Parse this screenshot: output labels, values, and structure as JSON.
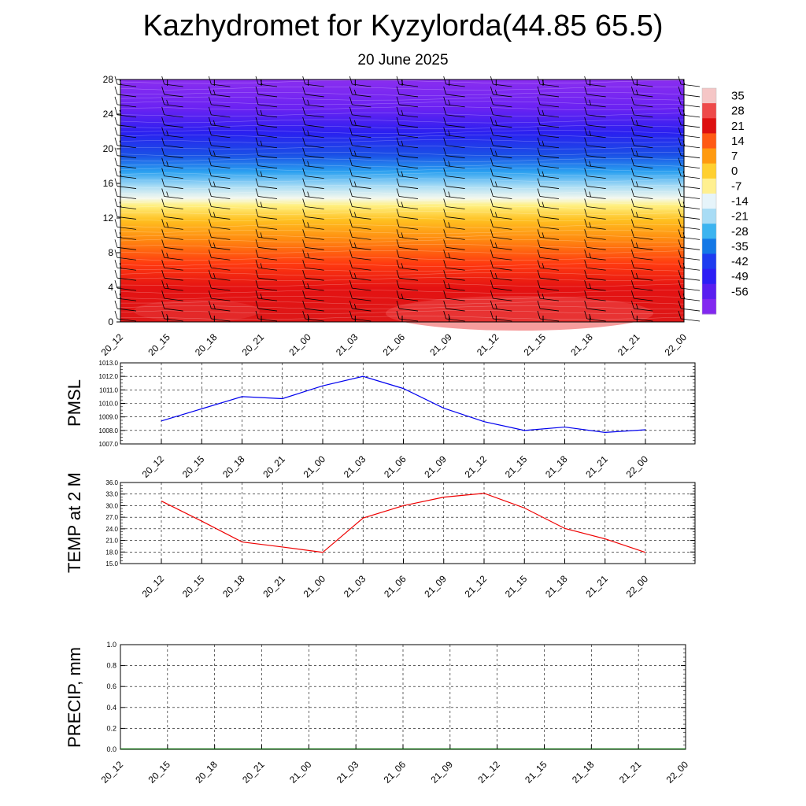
{
  "page": {
    "title": "Kazhydromet for Kyzylorda(44.85 65.5)",
    "subtitle": "20 June 2025"
  },
  "chart_data": [
    {
      "type": "heatmap",
      "id": "cross-section",
      "xlabel": "",
      "ylabel": "",
      "x_ticks": [
        "20_12",
        "20_15",
        "20_18",
        "20_21",
        "21_00",
        "21_03",
        "21_06",
        "21_09",
        "21_12",
        "21_15",
        "21_18",
        "21_21",
        "22_00"
      ],
      "y_ticks": [
        0,
        4,
        8,
        12,
        16,
        20,
        24,
        28
      ],
      "ylim": [
        0,
        28
      ],
      "color_scale_stops": [
        {
          "value": 35,
          "color": "#f5c6c6"
        },
        {
          "value": 28,
          "color": "#ee4a4a"
        },
        {
          "value": 21,
          "color": "#dd1010"
        },
        {
          "value": 14,
          "color": "#ff5a14"
        },
        {
          "value": 7,
          "color": "#ff9a10"
        },
        {
          "value": 0,
          "color": "#ffd030"
        },
        {
          "value": -7,
          "color": "#fff090"
        },
        {
          "value": -14,
          "color": "#e6f4fa"
        },
        {
          "value": -21,
          "color": "#a8dcf5"
        },
        {
          "value": -28,
          "color": "#3cb4f0"
        },
        {
          "value": -35,
          "color": "#1478e6"
        },
        {
          "value": -42,
          "color": "#1e3cf0"
        },
        {
          "value": -49,
          "color": "#2d1ef5"
        },
        {
          "value": -56,
          "color": "#5a1ef0"
        },
        {
          "value": -63,
          "color": "#8228f0"
        }
      ],
      "colorbar_labels": [
        "35",
        "28",
        "21",
        "14",
        "7",
        "0",
        "-7",
        "-14",
        "-21",
        "-28",
        "-35",
        "-42",
        "-49",
        "-56"
      ],
      "wind_barbs": true
    },
    {
      "type": "line",
      "id": "pmsl",
      "ylabel": "PMSL",
      "x": [
        "20_12",
        "20_15",
        "20_18",
        "20_21",
        "21_00",
        "21_03",
        "21_06",
        "21_09",
        "21_12",
        "21_15",
        "21_18",
        "21_21",
        "22_00"
      ],
      "series": [
        {
          "values": [
            1008.7,
            1009.6,
            1010.5,
            1010.35,
            1011.3,
            1012.0,
            1011.1,
            1009.65,
            1008.65,
            1008.0,
            1008.25,
            1007.85,
            1008.05
          ],
          "color": "#0000ee"
        }
      ],
      "ylim": [
        1007.0,
        1013.0
      ],
      "y_ticks": [
        "1013.0",
        "1012.0",
        "1011.0",
        "1010.0",
        "1009.0",
        "1008.0",
        "1007.0"
      ],
      "grid": true
    },
    {
      "type": "line",
      "id": "temp2m",
      "ylabel": "TEMP at 2 M",
      "x": [
        "20_12",
        "20_15",
        "20_18",
        "20_21",
        "21_00",
        "21_03",
        "21_06",
        "21_09",
        "21_12",
        "21_15",
        "21_18",
        "21_21",
        "22_00"
      ],
      "series": [
        {
          "values": [
            31.2,
            26.0,
            20.6,
            19.3,
            17.9,
            26.8,
            30.0,
            32.2,
            33.2,
            29.4,
            24.1,
            21.4,
            17.9
          ],
          "color": "#ee0000"
        }
      ],
      "ylim": [
        15.0,
        36.0
      ],
      "y_ticks": [
        "36.0",
        "33.0",
        "30.0",
        "27.0",
        "24.0",
        "21.0",
        "18.0",
        "15.0"
      ],
      "grid": true
    },
    {
      "type": "bar",
      "id": "precip",
      "ylabel": "PRECIP, mm",
      "categories": [
        "20_12",
        "20_15",
        "20_18",
        "20_21",
        "21_00",
        "21_03",
        "21_06",
        "21_09",
        "21_12",
        "21_15",
        "21_18",
        "21_21",
        "22_00"
      ],
      "values": [
        0,
        0,
        0,
        0,
        0,
        0,
        0,
        0,
        0,
        0,
        0,
        0,
        0
      ],
      "ylim": [
        0.0,
        1.0
      ],
      "y_ticks": [
        "1.0",
        "0.8",
        "0.6",
        "0.4",
        "0.2",
        "0.0"
      ],
      "grid": true,
      "color": "#006400"
    }
  ]
}
